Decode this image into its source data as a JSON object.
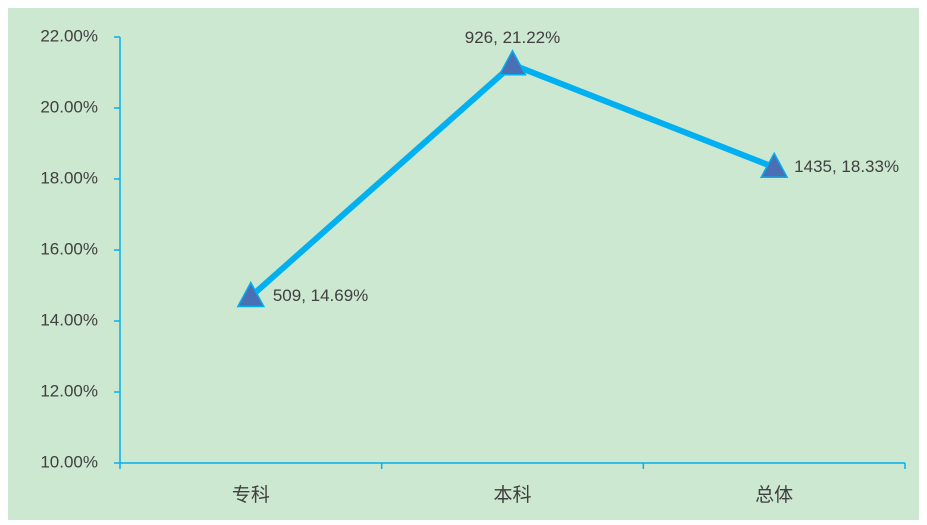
{
  "chart_data": {
    "type": "line",
    "categories": [
      "专科",
      "本科",
      "总体"
    ],
    "series": [
      {
        "name": null,
        "color": "#00b0f0",
        "marker_color": "#4a6fb5",
        "values": [
          14.69,
          21.22,
          18.33
        ],
        "value_labels": [
          "509, 14.69%",
          "926, 21.22%",
          "1435, 18.33%"
        ]
      }
    ],
    "ylim": [
      10,
      22
    ],
    "yticks": [
      {
        "value": 10,
        "label": "10.00%"
      },
      {
        "value": 12,
        "label": "12.00%"
      },
      {
        "value": 14,
        "label": "14.00%"
      },
      {
        "value": 16,
        "label": "16.00%"
      },
      {
        "value": 18,
        "label": "18.00%"
      },
      {
        "value": 20,
        "label": "20.00%"
      },
      {
        "value": 22,
        "label": "22.00%"
      }
    ],
    "background": "#cde8d0",
    "axis_color": "#00b0f0"
  }
}
